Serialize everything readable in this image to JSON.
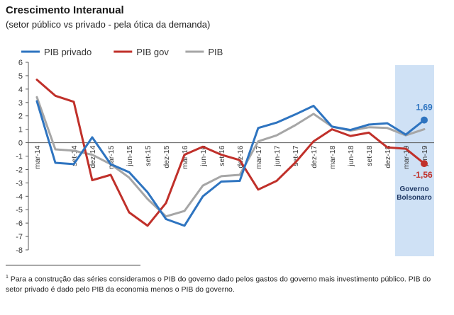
{
  "title": "Crescimento Interanual",
  "subtitle": "(setor público vs privado - pela ótica da demanda)",
  "footnote": {
    "marker": "1",
    "text": "Para a construção das séries consideramos o PIB do governo dado pelos gastos do governo mais investimento público. PIB do setor privado é dado pelo PIB da economia menos o PIB do governo."
  },
  "chart_data": {
    "type": "line",
    "title": "",
    "xlabel": "",
    "ylabel": "",
    "ylim": [
      -8,
      6
    ],
    "yticks": [
      "6",
      "5",
      "4",
      "3",
      "2",
      "1",
      "0",
      "-1",
      "-2",
      "-3",
      "-4",
      "-5",
      "-6",
      "-7",
      "-8"
    ],
    "legend_position": "top-left",
    "grid": false,
    "categories": [
      "mar-14",
      "jun-14",
      "set-14",
      "dez-14",
      "mar-15",
      "jun-15",
      "set-15",
      "dez-15",
      "mar-16",
      "jun-16",
      "set-16",
      "dez-16",
      "mar-17",
      "jun-17",
      "set-17",
      "dez-17",
      "mar-18",
      "jun-18",
      "set-18",
      "dez-18",
      "mar-19",
      "jun-19"
    ],
    "xtick_labels": [
      "mar-14",
      "",
      "set-14",
      "dez-14",
      "mar-15",
      "jun-15",
      "set-15",
      "dez-15",
      "mar-16",
      "jun-16",
      "set-16",
      "dez-16",
      "mar-17",
      "jun-17",
      "set-17",
      "dez-17",
      "mar-18",
      "jun-18",
      "set-18",
      "dez-18",
      "mar-19",
      "jun-19"
    ],
    "series": [
      {
        "name": "PIB privado",
        "color": "#2e74c0",
        "values": [
          3.1,
          -1.5,
          -1.6,
          0.4,
          -1.6,
          -2.2,
          -3.7,
          -5.7,
          -6.2,
          -4.0,
          -2.9,
          -2.85,
          1.1,
          1.5,
          2.1,
          2.75,
          1.2,
          0.95,
          1.35,
          1.45,
          0.6,
          1.69
        ]
      },
      {
        "name": "PIB gov",
        "color": "#c0302a",
        "values": [
          4.7,
          3.5,
          3.05,
          -2.8,
          -2.4,
          -5.2,
          -6.2,
          -4.5,
          -0.9,
          -0.3,
          -0.9,
          -1.3,
          -3.5,
          -2.85,
          -1.5,
          0.1,
          1.0,
          0.5,
          0.75,
          -0.35,
          -0.45,
          -1.56
        ]
      },
      {
        "name": "PIB",
        "color": "#a6a6a6",
        "values": [
          3.4,
          -0.5,
          -0.6,
          -0.9,
          -1.6,
          -2.6,
          -4.2,
          -5.5,
          -5.1,
          -3.2,
          -2.5,
          -2.4,
          0.1,
          0.55,
          1.3,
          2.15,
          1.2,
          0.9,
          1.15,
          1.1,
          0.55,
          1.0
        ]
      }
    ],
    "annotations": {
      "last_privado": "1,69",
      "last_gov": "-1,56",
      "shaded_label": [
        "Governo",
        "Bolsonaro"
      ],
      "shaded_fill": "#cfe1f5"
    }
  }
}
